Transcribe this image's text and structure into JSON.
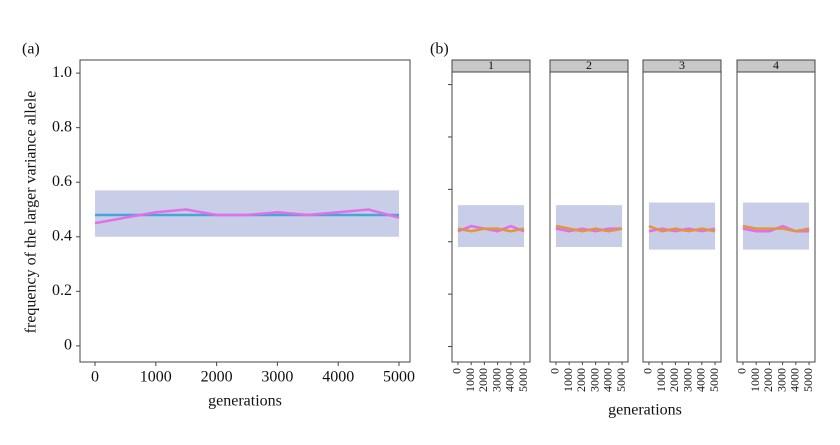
{
  "chart_data": [
    {
      "type": "line",
      "panel_label": "(a)",
      "x_label": "generations",
      "y_label": "frequency of the larger variance allele",
      "xlim": [
        -247,
        5181
      ],
      "ylim": [
        -0.059,
        1.048
      ],
      "xticks": [
        0,
        1000,
        2000,
        3000,
        4000,
        5000
      ],
      "yticks": [
        0,
        0.2,
        0.4,
        0.6,
        0.8,
        {
          "value": 1,
          "label": "1.0"
        }
      ],
      "x": [
        0,
        500,
        1000,
        1500,
        2000,
        2500,
        3000,
        3500,
        4000,
        4500,
        5000
      ],
      "band": {
        "color": "#9aa6d6",
        "lower": [
          0.4,
          0.4,
          0.4,
          0.4,
          0.4,
          0.4,
          0.4,
          0.4,
          0.4,
          0.4,
          0.4
        ],
        "upper": [
          0.57,
          0.57,
          0.57,
          0.57,
          0.57,
          0.57,
          0.57,
          0.57,
          0.57,
          0.57,
          0.57
        ]
      },
      "series": [
        {
          "color": "#45a6dc",
          "values": [
            0.48,
            0.48,
            0.48,
            0.48,
            0.48,
            0.48,
            0.48,
            0.48,
            0.48,
            0.48,
            0.48
          ]
        },
        {
          "color": "#e46ee8",
          "values": [
            0.45,
            0.47,
            0.49,
            0.5,
            0.48,
            0.48,
            0.49,
            0.48,
            0.49,
            0.5,
            0.47
          ]
        }
      ]
    },
    {
      "type": "facets",
      "panel_label": "(b)",
      "x_label": "generations",
      "xlim": [
        -450,
        5450
      ],
      "ylim": [
        -0.059,
        1.048
      ],
      "xticks": [
        0,
        1000,
        2000,
        3000,
        4000,
        5000
      ],
      "yticks": [
        0,
        0.2,
        0.4,
        0.6,
        0.8,
        1
      ],
      "x": [
        0,
        1000,
        2000,
        3000,
        4000,
        5000
      ],
      "facets": [
        {
          "label": "1",
          "band": {
            "color": "#9aa6d6",
            "lower": [
              0.38,
              0.38,
              0.38,
              0.38,
              0.38,
              0.38
            ],
            "upper": [
              0.54,
              0.54,
              0.54,
              0.54,
              0.54,
              0.54
            ]
          },
          "series": [
            {
              "color": "#e46ee8",
              "values": [
                0.44,
                0.46,
                0.45,
                0.44,
                0.46,
                0.44
              ]
            },
            {
              "color": "#e0963a",
              "values": [
                0.45,
                0.44,
                0.45,
                0.45,
                0.44,
                0.45
              ]
            }
          ]
        },
        {
          "label": "2",
          "band": {
            "color": "#9aa6d6",
            "lower": [
              0.38,
              0.38,
              0.38,
              0.38,
              0.38,
              0.38
            ],
            "upper": [
              0.54,
              0.54,
              0.54,
              0.54,
              0.54,
              0.54
            ]
          },
          "series": [
            {
              "color": "#e46ee8",
              "values": [
                0.45,
                0.44,
                0.45,
                0.44,
                0.45,
                0.45
              ]
            },
            {
              "color": "#e0963a",
              "values": [
                0.46,
                0.45,
                0.44,
                0.45,
                0.44,
                0.45
              ]
            }
          ]
        },
        {
          "label": "3",
          "band": {
            "color": "#9aa6d6",
            "lower": [
              0.37,
              0.37,
              0.37,
              0.37,
              0.37,
              0.37
            ],
            "upper": [
              0.55,
              0.55,
              0.55,
              0.55,
              0.55,
              0.55
            ]
          },
          "series": [
            {
              "color": "#e46ee8",
              "values": [
                0.44,
                0.45,
                0.44,
                0.45,
                0.44,
                0.45
              ]
            },
            {
              "color": "#e0963a",
              "values": [
                0.46,
                0.44,
                0.45,
                0.44,
                0.45,
                0.44
              ]
            }
          ]
        },
        {
          "label": "4",
          "band": {
            "color": "#9aa6d6",
            "lower": [
              0.37,
              0.37,
              0.37,
              0.37,
              0.37,
              0.37
            ],
            "upper": [
              0.55,
              0.55,
              0.55,
              0.55,
              0.55,
              0.55
            ]
          },
          "series": [
            {
              "color": "#e46ee8",
              "values": [
                0.45,
                0.44,
                0.44,
                0.46,
                0.44,
                0.44
              ]
            },
            {
              "color": "#e0963a",
              "values": [
                0.46,
                0.45,
                0.45,
                0.45,
                0.44,
                0.45
              ]
            }
          ]
        }
      ]
    }
  ]
}
